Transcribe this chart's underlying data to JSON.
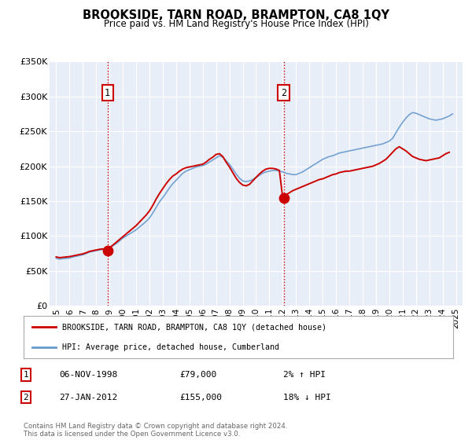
{
  "title": "BROOKSIDE, TARN ROAD, BRAMPTON, CA8 1QY",
  "subtitle": "Price paid vs. HM Land Registry's House Price Index (HPI)",
  "background_color": "#ffffff",
  "plot_bg_color": "#e8eef8",
  "grid_color": "#ffffff",
  "ylim": [
    0,
    350000
  ],
  "yticks": [
    0,
    50000,
    100000,
    150000,
    200000,
    250000,
    300000,
    350000
  ],
  "ytick_labels": [
    "£0",
    "£50K",
    "£100K",
    "£150K",
    "£200K",
    "£250K",
    "£300K",
    "£350K"
  ],
  "xlim_start": 1994.5,
  "xlim_end": 2025.5,
  "xtick_years": [
    1995,
    1996,
    1997,
    1998,
    1999,
    2000,
    2001,
    2002,
    2003,
    2004,
    2005,
    2006,
    2007,
    2008,
    2009,
    2010,
    2011,
    2012,
    2013,
    2014,
    2015,
    2016,
    2017,
    2018,
    2019,
    2020,
    2021,
    2022,
    2023,
    2024,
    2025
  ],
  "sale1_x": 1998.85,
  "sale1_y": 79000,
  "sale2_x": 2012.07,
  "sale2_y": 155000,
  "vline1_x": 1998.85,
  "vline2_x": 2012.07,
  "vline_color": "#cc0000",
  "vline_style": ":",
  "dot_color": "#cc0000",
  "dot_size": 80,
  "hpi_line_color": "#6699cc",
  "price_line_color": "#cc0000",
  "legend_label_price": "BROOKSIDE, TARN ROAD, BRAMPTON, CA8 1QY (detached house)",
  "legend_label_hpi": "HPI: Average price, detached house, Cumberland",
  "table_row1": [
    "1",
    "06-NOV-1998",
    "£79,000",
    "2% ↑ HPI"
  ],
  "table_row2": [
    "2",
    "27-JAN-2012",
    "£155,000",
    "18% ↓ HPI"
  ],
  "footer1": "Contains HM Land Registry data © Crown copyright and database right 2024.",
  "footer2": "This data is licensed under the Open Government Licence v3.0.",
  "hpi_data_x": [
    1995.0,
    1995.25,
    1995.5,
    1995.75,
    1996.0,
    1996.25,
    1996.5,
    1996.75,
    1997.0,
    1997.25,
    1997.5,
    1997.75,
    1998.0,
    1998.25,
    1998.5,
    1998.75,
    1999.0,
    1999.25,
    1999.5,
    1999.75,
    2000.0,
    2000.25,
    2000.5,
    2000.75,
    2001.0,
    2001.25,
    2001.5,
    2001.75,
    2002.0,
    2002.25,
    2002.5,
    2002.75,
    2003.0,
    2003.25,
    2003.5,
    2003.75,
    2004.0,
    2004.25,
    2004.5,
    2004.75,
    2005.0,
    2005.25,
    2005.5,
    2005.75,
    2006.0,
    2006.25,
    2006.5,
    2006.75,
    2007.0,
    2007.25,
    2007.5,
    2007.75,
    2008.0,
    2008.25,
    2008.5,
    2008.75,
    2009.0,
    2009.25,
    2009.5,
    2009.75,
    2010.0,
    2010.25,
    2010.5,
    2010.75,
    2011.0,
    2011.25,
    2011.5,
    2011.75,
    2012.0,
    2012.25,
    2012.5,
    2012.75,
    2013.0,
    2013.25,
    2013.5,
    2013.75,
    2014.0,
    2014.25,
    2014.5,
    2014.75,
    2015.0,
    2015.25,
    2015.5,
    2015.75,
    2016.0,
    2016.25,
    2016.5,
    2016.75,
    2017.0,
    2017.25,
    2017.5,
    2017.75,
    2018.0,
    2018.25,
    2018.5,
    2018.75,
    2019.0,
    2019.25,
    2019.5,
    2019.75,
    2020.0,
    2020.25,
    2020.5,
    2020.75,
    2021.0,
    2021.25,
    2021.5,
    2021.75,
    2022.0,
    2022.25,
    2022.5,
    2022.75,
    2023.0,
    2023.25,
    2023.5,
    2023.75,
    2024.0,
    2024.25,
    2024.5,
    2024.75
  ],
  "hpi_data_y": [
    68000,
    67000,
    67500,
    68000,
    68500,
    70000,
    71000,
    72000,
    73000,
    75000,
    77000,
    78000,
    79000,
    80000,
    81000,
    81500,
    83000,
    86000,
    89000,
    93000,
    97000,
    100000,
    103000,
    106000,
    109000,
    113000,
    117000,
    121000,
    126000,
    133000,
    141000,
    149000,
    155000,
    162000,
    169000,
    175000,
    180000,
    185000,
    190000,
    193000,
    195000,
    197000,
    199000,
    200000,
    201000,
    203000,
    206000,
    209000,
    212000,
    215000,
    213000,
    208000,
    203000,
    196000,
    189000,
    183000,
    179000,
    178000,
    179000,
    181000,
    184000,
    187000,
    190000,
    192000,
    193000,
    194000,
    194000,
    193000,
    192000,
    190000,
    189000,
    188000,
    188000,
    190000,
    192000,
    195000,
    198000,
    201000,
    204000,
    207000,
    210000,
    212000,
    214000,
    215000,
    217000,
    219000,
    220000,
    221000,
    222000,
    223000,
    224000,
    225000,
    226000,
    227000,
    228000,
    229000,
    230000,
    231000,
    232000,
    234000,
    236000,
    240000,
    248000,
    256000,
    263000,
    269000,
    274000,
    277000,
    276000,
    274000,
    272000,
    270000,
    268000,
    267000,
    266000,
    267000,
    268000,
    270000,
    272000,
    275000
  ],
  "price_data_x": [
    1995.0,
    1995.25,
    1995.5,
    1995.75,
    1996.0,
    1996.25,
    1996.5,
    1996.75,
    1997.0,
    1997.25,
    1997.5,
    1997.75,
    1998.0,
    1998.25,
    1998.5,
    1998.75,
    1999.0,
    1999.25,
    1999.5,
    1999.75,
    2000.0,
    2000.25,
    2000.5,
    2000.75,
    2001.0,
    2001.25,
    2001.5,
    2001.75,
    2002.0,
    2002.25,
    2002.5,
    2002.75,
    2003.0,
    2003.25,
    2003.5,
    2003.75,
    2004.0,
    2004.25,
    2004.5,
    2004.75,
    2005.0,
    2005.25,
    2005.5,
    2005.75,
    2006.0,
    2006.25,
    2006.5,
    2006.75,
    2007.0,
    2007.25,
    2007.5,
    2007.75,
    2008.0,
    2008.25,
    2008.5,
    2008.75,
    2009.0,
    2009.25,
    2009.5,
    2009.75,
    2010.0,
    2010.25,
    2010.5,
    2010.75,
    2011.0,
    2011.25,
    2011.5,
    2011.75,
    2012.0,
    2012.25,
    2012.5,
    2012.75,
    2013.0,
    2013.25,
    2013.5,
    2013.75,
    2014.0,
    2014.25,
    2014.5,
    2014.75,
    2015.0,
    2015.25,
    2015.5,
    2015.75,
    2016.0,
    2016.25,
    2016.5,
    2016.75,
    2017.0,
    2017.25,
    2017.5,
    2017.75,
    2018.0,
    2018.25,
    2018.5,
    2018.75,
    2019.0,
    2019.25,
    2019.5,
    2019.75,
    2020.0,
    2020.25,
    2020.5,
    2020.75,
    2021.0,
    2021.25,
    2021.5,
    2021.75,
    2022.0,
    2022.25,
    2022.5,
    2022.75,
    2023.0,
    2023.25,
    2023.5,
    2023.75,
    2024.0,
    2024.25,
    2024.5
  ],
  "price_data_y": [
    70000,
    69000,
    69500,
    70000,
    70500,
    71500,
    72500,
    73500,
    74500,
    76000,
    78000,
    79000,
    80000,
    81000,
    81500,
    79000,
    83000,
    87000,
    91000,
    95000,
    99000,
    103000,
    107000,
    111000,
    115000,
    120000,
    125000,
    130000,
    136000,
    144000,
    153000,
    161000,
    168000,
    175000,
    181000,
    186000,
    189000,
    193000,
    196000,
    198000,
    199000,
    200000,
    201000,
    202000,
    203000,
    206000,
    210000,
    213000,
    217000,
    218000,
    214000,
    206000,
    199000,
    191000,
    183000,
    177000,
    173000,
    172000,
    174000,
    179000,
    184000,
    189000,
    193000,
    196000,
    197000,
    197000,
    196000,
    194000,
    155000,
    159000,
    162000,
    165000,
    167000,
    169000,
    171000,
    173000,
    175000,
    177000,
    179000,
    181000,
    182000,
    184000,
    186000,
    188000,
    189000,
    191000,
    192000,
    193000,
    193000,
    194000,
    195000,
    196000,
    197000,
    198000,
    199000,
    200000,
    202000,
    204000,
    207000,
    210000,
    215000,
    220000,
    225000,
    228000,
    225000,
    222000,
    218000,
    214000,
    212000,
    210000,
    209000,
    208000,
    209000,
    210000,
    211000,
    212000,
    215000,
    218000,
    220000
  ]
}
